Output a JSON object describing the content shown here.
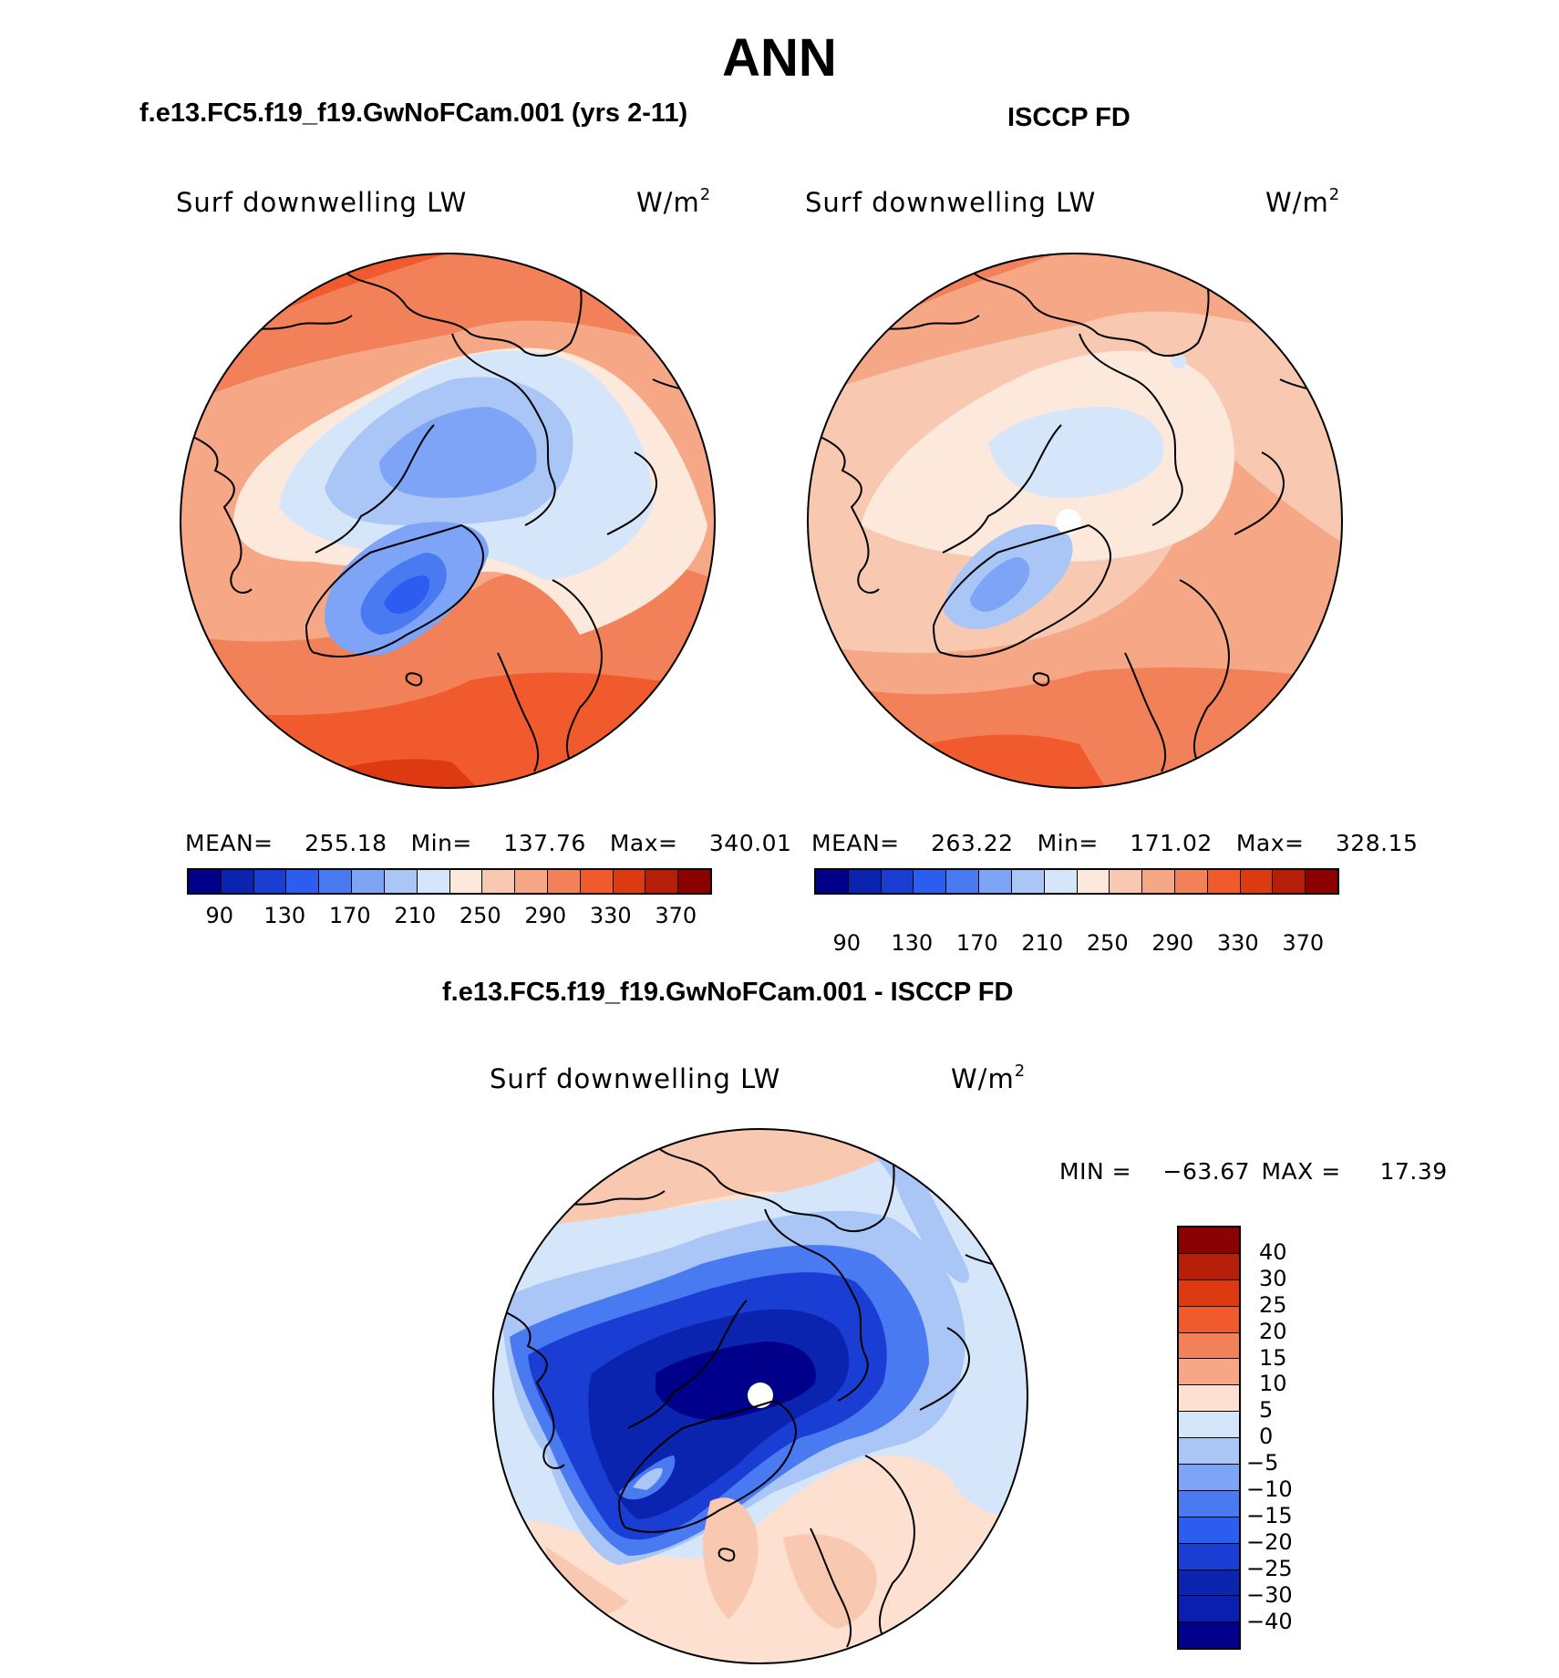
{
  "figure_title": "ANN",
  "panels": [
    {
      "title": "f.e13.FC5.f19_f19.GwNoFCam.001 (yrs 2-11)",
      "variable": "Surf downwelling LW",
      "units": "W/m",
      "units_exp": "2",
      "mean_label": "MEAN=",
      "mean": "255.18",
      "min_label": "Min=",
      "min": "137.76",
      "max_label": "Max=",
      "max": "340.01"
    },
    {
      "title": "ISCCP FD",
      "variable": "Surf downwelling LW",
      "units": "W/m",
      "units_exp": "2",
      "mean_label": "MEAN=",
      "mean": "263.22",
      "min_label": "Min=",
      "min": "171.02",
      "max_label": "Max=",
      "max": "328.15"
    }
  ],
  "abs_colorbar": {
    "colors": [
      "#00008b",
      "#0a24b0",
      "#1a3ed4",
      "#2c5cf0",
      "#4a7af2",
      "#7da4f7",
      "#aac6f7",
      "#d6e6fa",
      "#fde9dc",
      "#f8c8b0",
      "#f5a786",
      "#f28059",
      "#f05a2c",
      "#dd3a12",
      "#b71e0a",
      "#8b0000"
    ],
    "tick_labels": [
      "90",
      "130",
      "170",
      "210",
      "250",
      "290",
      "330",
      "370"
    ]
  },
  "diff_panel": {
    "title": "f.e13.FC5.f19_f19.GwNoFCam.001 - ISCCP FD",
    "variable": "Surf downwelling LW",
    "units": "W/m",
    "units_exp": "2",
    "min_label": "MIN =",
    "min": "−63.67",
    "max_label": "MAX =",
    "max": "17.39"
  },
  "diff_colorbar": {
    "colors": [
      "#8b0000",
      "#b71e0a",
      "#dd3a12",
      "#f05a2c",
      "#f28059",
      "#f5a786",
      "#fde0cf",
      "#d6e6fa",
      "#aac6f7",
      "#7da4f7",
      "#4a7af2",
      "#2c5cf0",
      "#1a3ed4",
      "#0a24b0",
      "#0a1eb0",
      "#00008b"
    ],
    "tick_labels": [
      "40",
      "30",
      "25",
      "20",
      "15",
      "10",
      "5",
      "0",
      "−5",
      "−10",
      "−15",
      "−20",
      "−25",
      "−30",
      "−40"
    ]
  }
}
